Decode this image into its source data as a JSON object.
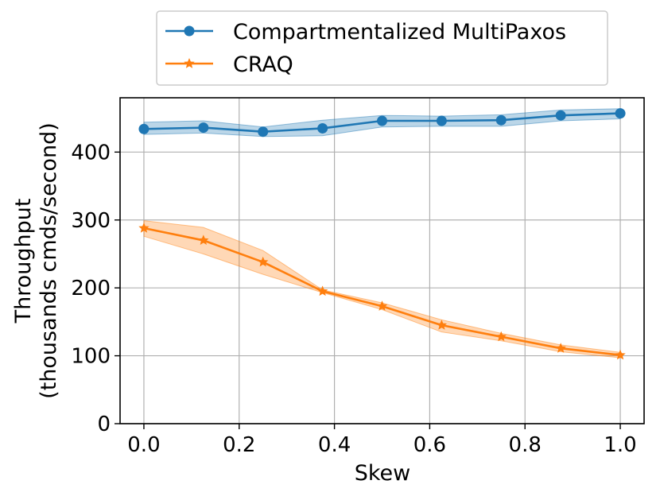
{
  "chart_data": {
    "type": "line",
    "title": "",
    "xlabel": "Skew",
    "ylabel_line1": "Throughput",
    "ylabel_line2": "(thousands cmds/second)",
    "xlim": [
      -0.05,
      1.05
    ],
    "ylim": [
      0,
      480
    ],
    "xticks": [
      0.0,
      0.2,
      0.4,
      0.6,
      0.8,
      1.0
    ],
    "xtick_labels": [
      "0.0",
      "0.2",
      "0.4",
      "0.6",
      "0.8",
      "1.0"
    ],
    "yticks": [
      0,
      100,
      200,
      300,
      400
    ],
    "ytick_labels": [
      "0",
      "100",
      "200",
      "300",
      "400"
    ],
    "grid": true,
    "legend_position": "top-center-outside",
    "series": [
      {
        "name": "Compartmentalized MultiPaxos",
        "color": "#1f77b4",
        "marker": "circle",
        "x": [
          0.0,
          0.125,
          0.25,
          0.375,
          0.5,
          0.625,
          0.75,
          0.875,
          1.0
        ],
        "values": [
          434,
          436,
          430,
          435,
          446,
          446,
          447,
          454,
          457
        ],
        "lower": [
          426,
          428,
          423,
          424,
          437,
          438,
          438,
          446,
          449
        ],
        "upper": [
          444,
          446,
          437,
          447,
          454,
          453,
          455,
          462,
          464
        ]
      },
      {
        "name": "CRAQ",
        "color": "#ff7f0e",
        "marker": "star",
        "x": [
          0.0,
          0.125,
          0.25,
          0.375,
          0.5,
          0.625,
          0.75,
          0.875,
          1.0
        ],
        "values": [
          288,
          270,
          238,
          195,
          173,
          145,
          128,
          111,
          101
        ],
        "lower": [
          276,
          250,
          220,
          193,
          168,
          135,
          122,
          106,
          97
        ],
        "upper": [
          299,
          289,
          255,
          197,
          178,
          153,
          133,
          116,
          105
        ]
      }
    ]
  }
}
